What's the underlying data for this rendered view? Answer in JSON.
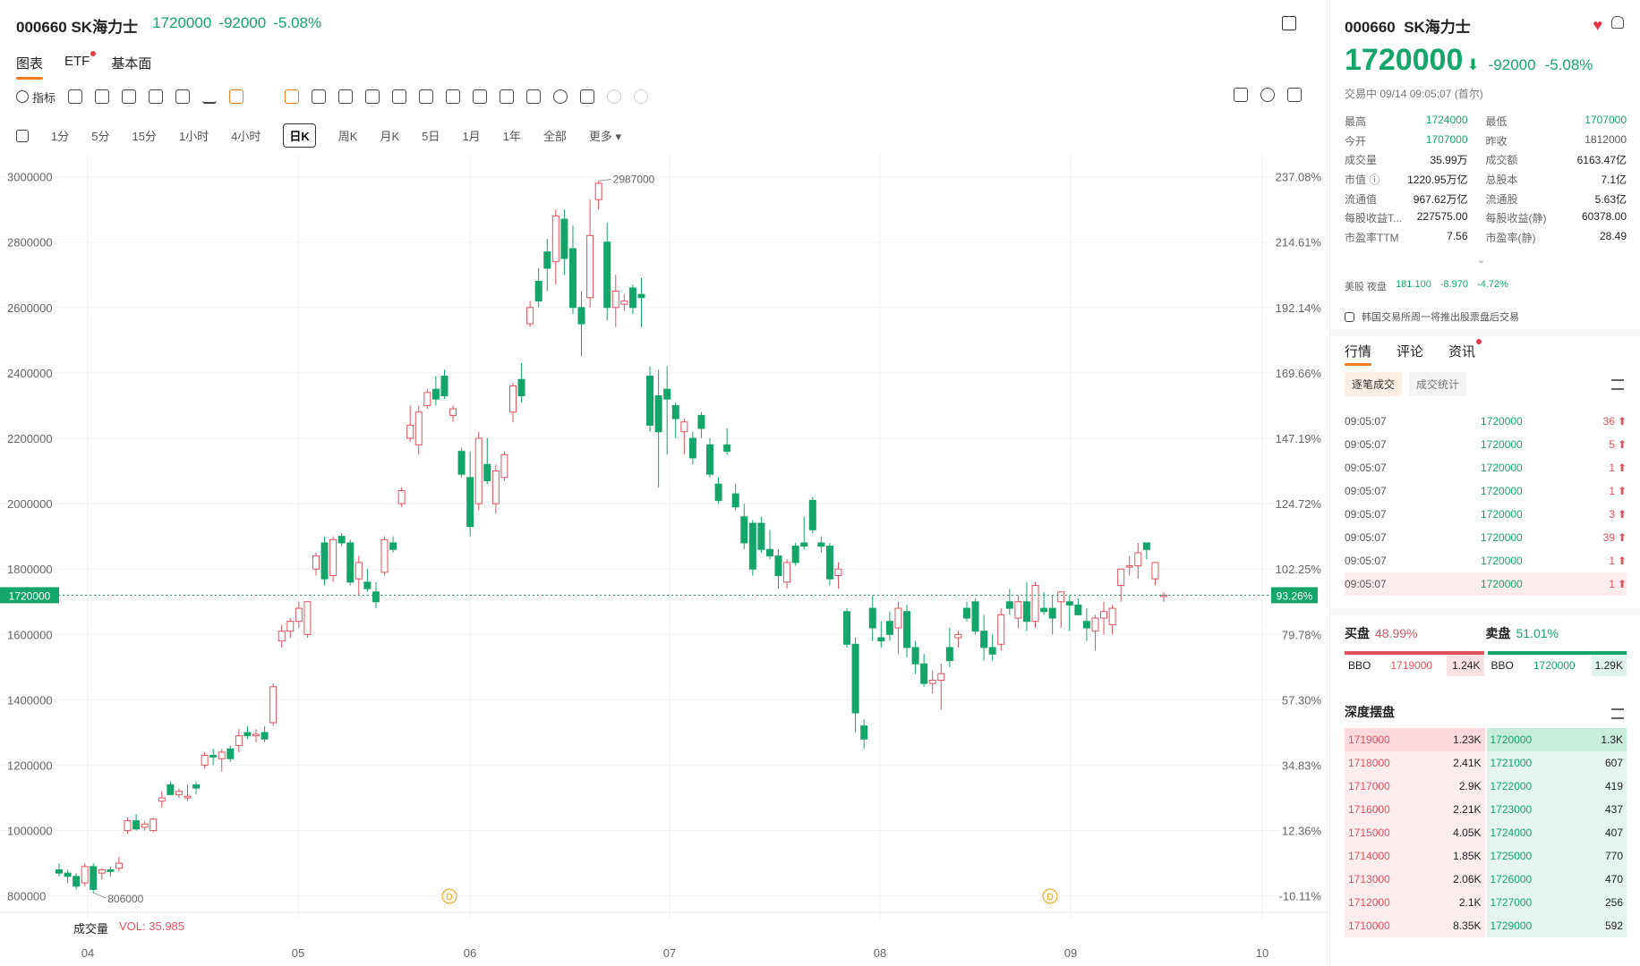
{
  "header": {
    "code": "000660",
    "name": "SK海力士",
    "price": "1720000",
    "change": "-92000",
    "pct": "-5.08%"
  },
  "tabs": [
    "图表",
    "ETF",
    "基本面"
  ],
  "toolbar": {
    "indicator_label": "指标"
  },
  "periods": [
    "1分",
    "5分",
    "15分",
    "1小时",
    "4小时",
    "日K",
    "周K",
    "月K",
    "5日",
    "1月",
    "1年",
    "全部",
    "更多"
  ],
  "period_active": "日K",
  "volume": {
    "label": "成交量",
    "value": "VOL: 35.985"
  },
  "chart_data": {
    "type": "candlestick",
    "x_ticks": [
      "04",
      "05",
      "06",
      "07",
      "08",
      "09",
      "10"
    ],
    "y_ticks": [
      "3000000",
      "2800000",
      "2600000",
      "2400000",
      "2200000",
      "2000000",
      "1800000",
      "1600000",
      "1400000",
      "1200000",
      "1000000",
      "800000"
    ],
    "pct_ticks": [
      "237.08%",
      "214.61%",
      "192.14%",
      "169.66%",
      "147.19%",
      "124.72%",
      "102.25%",
      "79.78%",
      "57.30%",
      "34.83%",
      "12.36%",
      "-10.11%"
    ],
    "ylim": [
      750000,
      3070000
    ],
    "current_price": "1720000",
    "current_pct": "93.26%",
    "max_label": "2987000",
    "min_label": "806000",
    "dividend_marker": "D",
    "up_color": "#e0525e",
    "down_color": "#14a56b",
    "candles": [
      [
        880000,
        900000,
        860000,
        870000
      ],
      [
        870000,
        880000,
        840000,
        860000
      ],
      [
        860000,
        870000,
        820000,
        830000
      ],
      [
        840000,
        900000,
        830000,
        890000
      ],
      [
        890000,
        900000,
        810000,
        820000
      ],
      [
        870000,
        885000,
        850000,
        880000
      ],
      [
        880000,
        890000,
        860000,
        875000
      ],
      [
        885000,
        920000,
        875000,
        900000
      ],
      [
        1000000,
        1040000,
        990000,
        1030000
      ],
      [
        1030000,
        1050000,
        1000000,
        1005000
      ],
      [
        1010000,
        1030000,
        1000000,
        1020000
      ],
      [
        1000000,
        1040000,
        995000,
        1035000
      ],
      [
        1090000,
        1120000,
        1070000,
        1100000
      ],
      [
        1140000,
        1150000,
        1110000,
        1110000
      ],
      [
        1110000,
        1130000,
        1100000,
        1120000
      ],
      [
        1100000,
        1140000,
        1090000,
        1105000
      ],
      [
        1140000,
        1150000,
        1110000,
        1130000
      ],
      [
        1200000,
        1240000,
        1190000,
        1230000
      ],
      [
        1230000,
        1250000,
        1200000,
        1225000
      ],
      [
        1220000,
        1250000,
        1180000,
        1240000
      ],
      [
        1250000,
        1260000,
        1210000,
        1220000
      ],
      [
        1260000,
        1310000,
        1240000,
        1290000
      ],
      [
        1300000,
        1320000,
        1280000,
        1290000
      ],
      [
        1290000,
        1310000,
        1270000,
        1295000
      ],
      [
        1300000,
        1320000,
        1270000,
        1280000
      ],
      [
        1330000,
        1450000,
        1320000,
        1440000
      ],
      [
        1580000,
        1630000,
        1560000,
        1610000
      ],
      [
        1610000,
        1650000,
        1590000,
        1640000
      ],
      [
        1640000,
        1700000,
        1620000,
        1680000
      ],
      [
        1600000,
        1700000,
        1590000,
        1700000
      ],
      [
        1800000,
        1850000,
        1780000,
        1840000
      ],
      [
        1880000,
        1900000,
        1750000,
        1770000
      ],
      [
        1780000,
        1900000,
        1760000,
        1890000
      ],
      [
        1900000,
        1910000,
        1870000,
        1880000
      ],
      [
        1880000,
        1890000,
        1750000,
        1760000
      ],
      [
        1770000,
        1840000,
        1720000,
        1820000
      ],
      [
        1760000,
        1800000,
        1730000,
        1740000
      ],
      [
        1730000,
        1760000,
        1680000,
        1700000
      ],
      [
        1790000,
        1900000,
        1780000,
        1890000
      ],
      [
        1880000,
        1900000,
        1850000,
        1860000
      ],
      [
        2000000,
        2050000,
        1990000,
        2040000
      ],
      [
        2200000,
        2300000,
        2190000,
        2240000
      ],
      [
        2180000,
        2300000,
        2150000,
        2280000
      ],
      [
        2300000,
        2350000,
        2290000,
        2340000
      ],
      [
        2350000,
        2390000,
        2300000,
        2320000
      ],
      [
        2390000,
        2410000,
        2320000,
        2330000
      ],
      [
        2270000,
        2300000,
        2250000,
        2290000
      ],
      [
        2160000,
        2170000,
        2080000,
        2090000
      ],
      [
        2080000,
        2160000,
        1900000,
        1930000
      ],
      [
        2000000,
        2220000,
        1980000,
        2200000
      ],
      [
        2120000,
        2200000,
        2060000,
        2070000
      ],
      [
        2000000,
        2120000,
        1970000,
        2100000
      ],
      [
        2080000,
        2160000,
        2070000,
        2150000
      ],
      [
        2280000,
        2370000,
        2250000,
        2360000
      ],
      [
        2380000,
        2430000,
        2310000,
        2330000
      ],
      [
        2550000,
        2620000,
        2540000,
        2600000
      ],
      [
        2680000,
        2720000,
        2600000,
        2620000
      ],
      [
        2770000,
        2810000,
        2650000,
        2720000
      ],
      [
        2740000,
        2900000,
        2670000,
        2880000
      ],
      [
        2870000,
        2900000,
        2700000,
        2750000
      ],
      [
        2780000,
        2850000,
        2580000,
        2600000
      ],
      [
        2600000,
        2650000,
        2450000,
        2550000
      ],
      [
        2630000,
        2930000,
        2600000,
        2820000
      ],
      [
        2930000,
        2987000,
        2900000,
        2980000
      ],
      [
        2800000,
        2860000,
        2560000,
        2600000
      ],
      [
        2600000,
        2700000,
        2540000,
        2650000
      ],
      [
        2610000,
        2640000,
        2590000,
        2620000
      ],
      [
        2660000,
        2670000,
        2580000,
        2600000
      ],
      [
        2640000,
        2690000,
        2540000,
        2630000
      ],
      [
        2390000,
        2420000,
        2220000,
        2240000
      ],
      [
        2330000,
        2410000,
        2050000,
        2220000
      ],
      [
        2350000,
        2420000,
        2150000,
        2320000
      ],
      [
        2300000,
        2310000,
        2200000,
        2260000
      ],
      [
        2220000,
        2260000,
        2150000,
        2250000
      ],
      [
        2200000,
        2220000,
        2120000,
        2140000
      ],
      [
        2270000,
        2280000,
        2200000,
        2230000
      ],
      [
        2180000,
        2200000,
        2080000,
        2090000
      ],
      [
        2060000,
        2080000,
        2000000,
        2010000
      ],
      [
        2180000,
        2230000,
        2150000,
        2160000
      ],
      [
        2030000,
        2060000,
        1980000,
        1990000
      ],
      [
        1960000,
        2000000,
        1860000,
        1880000
      ],
      [
        1940000,
        1950000,
        1780000,
        1800000
      ],
      [
        1940000,
        1960000,
        1850000,
        1860000
      ],
      [
        1860000,
        1920000,
        1830000,
        1840000
      ],
      [
        1840000,
        1860000,
        1740000,
        1780000
      ],
      [
        1760000,
        1830000,
        1740000,
        1820000
      ],
      [
        1870000,
        1880000,
        1810000,
        1820000
      ],
      [
        1880000,
        1960000,
        1860000,
        1870000
      ],
      [
        2010000,
        2020000,
        1910000,
        1920000
      ],
      [
        1880000,
        1900000,
        1850000,
        1870000
      ],
      [
        1870000,
        1880000,
        1750000,
        1770000
      ],
      [
        1780000,
        1820000,
        1740000,
        1800000
      ],
      [
        1670000,
        1680000,
        1560000,
        1570000
      ],
      [
        1570000,
        1590000,
        1300000,
        1360000
      ],
      [
        1320000,
        1340000,
        1250000,
        1280000
      ],
      [
        1680000,
        1720000,
        1580000,
        1620000
      ],
      [
        1590000,
        1640000,
        1560000,
        1580000
      ],
      [
        1640000,
        1670000,
        1580000,
        1600000
      ],
      [
        1620000,
        1700000,
        1540000,
        1680000
      ],
      [
        1670000,
        1690000,
        1530000,
        1560000
      ],
      [
        1560000,
        1580000,
        1480000,
        1510000
      ],
      [
        1510000,
        1540000,
        1440000,
        1450000
      ],
      [
        1450000,
        1490000,
        1420000,
        1460000
      ],
      [
        1460000,
        1510000,
        1370000,
        1480000
      ],
      [
        1560000,
        1620000,
        1500000,
        1520000
      ],
      [
        1590000,
        1610000,
        1560000,
        1600000
      ],
      [
        1680000,
        1700000,
        1640000,
        1650000
      ],
      [
        1700000,
        1710000,
        1600000,
        1610000
      ],
      [
        1610000,
        1660000,
        1520000,
        1560000
      ],
      [
        1560000,
        1600000,
        1520000,
        1540000
      ],
      [
        1570000,
        1680000,
        1550000,
        1660000
      ],
      [
        1700000,
        1740000,
        1660000,
        1680000
      ],
      [
        1650000,
        1720000,
        1620000,
        1700000
      ],
      [
        1700000,
        1760000,
        1610000,
        1640000
      ],
      [
        1640000,
        1760000,
        1620000,
        1750000
      ],
      [
        1680000,
        1730000,
        1660000,
        1670000
      ],
      [
        1680000,
        1720000,
        1600000,
        1650000
      ],
      [
        1700000,
        1720000,
        1620000,
        1730000
      ],
      [
        1700000,
        1720000,
        1610000,
        1690000
      ],
      [
        1690000,
        1710000,
        1660000,
        1660000
      ],
      [
        1640000,
        1680000,
        1580000,
        1620000
      ],
      [
        1610000,
        1660000,
        1550000,
        1650000
      ],
      [
        1650000,
        1700000,
        1600000,
        1670000
      ],
      [
        1630000,
        1690000,
        1600000,
        1680000
      ],
      [
        1750000,
        1800000,
        1700000,
        1800000
      ],
      [
        1810000,
        1840000,
        1780000,
        1810000
      ],
      [
        1810000,
        1880000,
        1770000,
        1850000
      ],
      [
        1880000,
        1880000,
        1830000,
        1860000
      ],
      [
        1770000,
        1820000,
        1750000,
        1820000
      ],
      [
        1720000,
        1730000,
        1700000,
        1720000
      ]
    ]
  },
  "right": {
    "title_code": "000660",
    "title_name": "SK海力士",
    "price": "1720000",
    "arrow": "⬇",
    "change": "-92000",
    "pct": "-5.08%",
    "status": "交易中 09/14 09:05:07 (首尔)",
    "stats": [
      {
        "k1": "最高",
        "v1": "1724000",
        "c1": "g",
        "k2": "最低",
        "v2": "1707000",
        "c2": "g"
      },
      {
        "k1": "今开",
        "v1": "1707000",
        "c1": "g",
        "k2": "昨收",
        "v2": "1812000",
        "c2": "r"
      },
      {
        "k1": "成交量",
        "v1": "35.99万",
        "c1": "n",
        "k2": "成交额",
        "v2": "6163.47亿",
        "c2": "n"
      },
      {
        "k1": "市值 ⓘ",
        "v1": "1220.95万亿",
        "c1": "n",
        "k2": "总股本",
        "v2": "7.1亿",
        "c2": "n"
      },
      {
        "k1": "流通值",
        "v1": "967.62万亿",
        "c1": "n",
        "k2": "流通股",
        "v2": "5.63亿",
        "c2": "n"
      },
      {
        "k1": "每股收益T...",
        "v1": "227575.00",
        "c1": "n",
        "k2": "每股收益(静)",
        "v2": "60378.00",
        "c2": "n"
      },
      {
        "k1": "市盈率TTM",
        "v1": "7.56",
        "c1": "n",
        "k2": "市盈率(静)",
        "v2": "28.49",
        "c2": "n"
      }
    ],
    "us_label": "美股 夜盘",
    "us_price": "181.100",
    "us_change": "-8.970",
    "us_pct": "-4.72%",
    "notice": "韩国交易所周一将推出股票盘后交易",
    "tabs": [
      "行情",
      "评论",
      "资讯"
    ],
    "subtabs": [
      "逐笔成交",
      "成交统计"
    ],
    "ticks": [
      {
        "t": "09:05:07",
        "p": "1720000",
        "q": "36"
      },
      {
        "t": "09:05:07",
        "p": "1720000",
        "q": "5"
      },
      {
        "t": "09:05:07",
        "p": "1720000",
        "q": "1"
      },
      {
        "t": "09:05:07",
        "p": "1720000",
        "q": "1"
      },
      {
        "t": "09:05:07",
        "p": "1720000",
        "q": "3"
      },
      {
        "t": "09:05:07",
        "p": "1720000",
        "q": "39"
      },
      {
        "t": "09:05:07",
        "p": "1720000",
        "q": "1"
      },
      {
        "t": "09:05:07",
        "p": "1720000",
        "q": "1"
      }
    ],
    "buy_label": "买盘",
    "buy_pct": "48.99%",
    "sell_label": "卖盘",
    "sell_pct": "51.01%",
    "bbo_label": "BBO",
    "bbo_bid": "1719000",
    "bbo_bid_size": "1.24K",
    "bbo_ask": "1720000",
    "bbo_ask_size": "1.29K",
    "depth_title": "深度摆盘",
    "depth_bids": [
      {
        "p": "1719000",
        "q": "1.23K"
      },
      {
        "p": "1718000",
        "q": "2.41K"
      },
      {
        "p": "1717000",
        "q": "2.9K"
      },
      {
        "p": "1716000",
        "q": "2.21K"
      },
      {
        "p": "1715000",
        "q": "4.05K"
      },
      {
        "p": "1714000",
        "q": "1.85K"
      },
      {
        "p": "1713000",
        "q": "2.06K"
      },
      {
        "p": "1712000",
        "q": "2.1K"
      },
      {
        "p": "1710000",
        "q": "8.35K"
      }
    ],
    "depth_asks": [
      {
        "p": "1720000",
        "q": "1.3K"
      },
      {
        "p": "1721000",
        "q": "607"
      },
      {
        "p": "1722000",
        "q": "419"
      },
      {
        "p": "1723000",
        "q": "437"
      },
      {
        "p": "1724000",
        "q": "407"
      },
      {
        "p": "1725000",
        "q": "770"
      },
      {
        "p": "1726000",
        "q": "470"
      },
      {
        "p": "1727000",
        "q": "256"
      },
      {
        "p": "1729000",
        "q": "592"
      }
    ]
  }
}
